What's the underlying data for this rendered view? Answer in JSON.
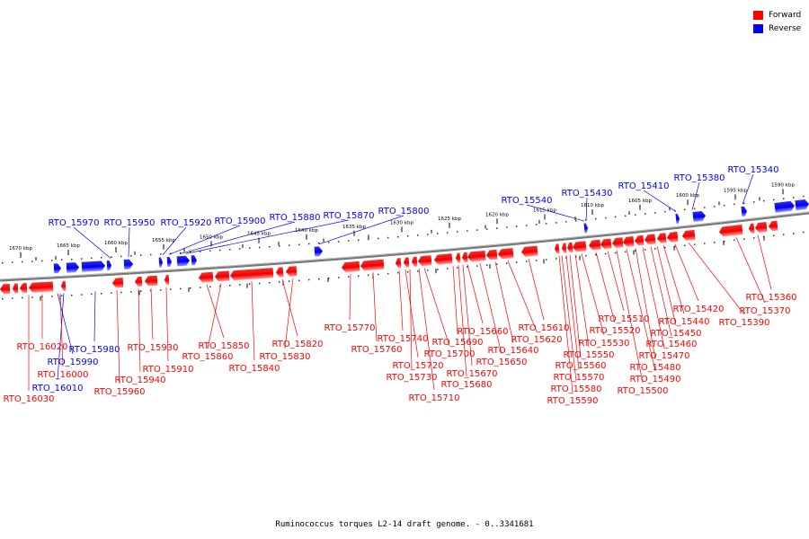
{
  "legend": {
    "forward_label": "Forward",
    "reverse_label": "Reverse",
    "forward_color": "#ff0000",
    "reverse_color": "#0000ff"
  },
  "caption": "Ruminococcus torques L2-14 draft genome. - 0..3341681",
  "ticks": [
    "1670 kbp",
    "1665 kbp",
    "1660 kbp",
    "1655 kbp",
    "1650 kbp",
    "1645 kbp",
    "1640 kbp",
    "1635 kbp",
    "1630 kbp",
    "1625 kbp",
    "1620 kbp",
    "1615 kbp",
    "1610 kbp",
    "1605 kbp",
    "1600 kbp",
    "1595 kbp",
    "1590 kbp"
  ],
  "reverse_genes": [
    "RTO_15970",
    "RTO_15950",
    "RTO_15920",
    "RTO_15900",
    "RTO_15880",
    "RTO_15870",
    "RTO_15800",
    "RTO_15540",
    "RTO_15430",
    "RTO_15410",
    "RTO_15380",
    "RTO_15340",
    "RTO_15980",
    "RTO_15990",
    "RTO_16010"
  ],
  "forward_genes": [
    "RTO_16020",
    "RTO_16000",
    "RTO_16030",
    "RTO_15960",
    "RTO_15940",
    "RTO_15930",
    "RTO_15910",
    "RTO_15850",
    "RTO_15860",
    "RTO_15840",
    "RTO_15820",
    "RTO_15830",
    "RTO_15770",
    "RTO_15760",
    "RTO_15740",
    "RTO_15720",
    "RTO_15730",
    "RTO_15710",
    "RTO_15700",
    "RTO_15690",
    "RTO_15680",
    "RTO_15670",
    "RTO_15660",
    "RTO_15650",
    "RTO_15640",
    "RTO_15620",
    "RTO_15610",
    "RTO_15590",
    "RTO_15580",
    "RTO_15570",
    "RTO_15560",
    "RTO_15550",
    "RTO_15530",
    "RTO_15520",
    "RTO_15510",
    "RTO_15500",
    "RTO_15490",
    "RTO_15480",
    "RTO_15470",
    "RTO_15460",
    "RTO_15450",
    "RTO_15440",
    "RTO_15420",
    "RTO_15390",
    "RTO_15370",
    "RTO_15360"
  ]
}
